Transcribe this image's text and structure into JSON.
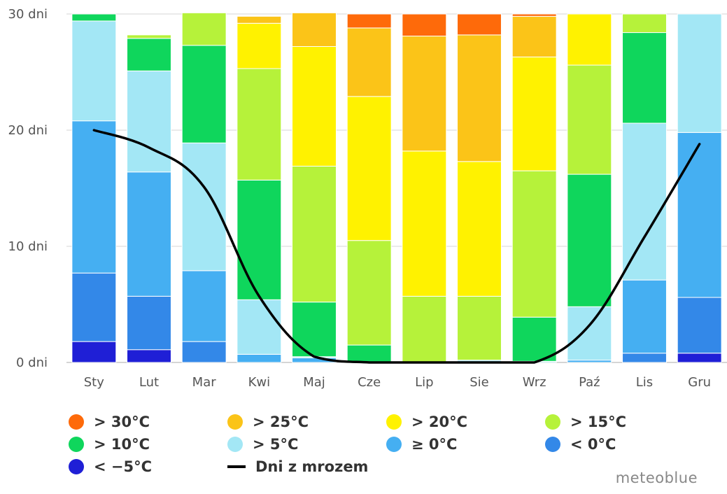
{
  "chart_data": {
    "type": "bar",
    "stacked": true,
    "categories": [
      "Sty",
      "Lut",
      "Mar",
      "Kwi",
      "Maj",
      "Cze",
      "Lip",
      "Sie",
      "Wrz",
      "Paź",
      "Lis",
      "Gru"
    ],
    "y_ticks": [
      "0 dni",
      "10 dni",
      "20 dni",
      "30 dni"
    ],
    "ylim": [
      0,
      30
    ],
    "grid": true,
    "series": [
      {
        "name": "< -5°C",
        "color": "#1f1fd6",
        "values": [
          1.8,
          1.1,
          0,
          0,
          0,
          0,
          0,
          0,
          0,
          0,
          0,
          0.8
        ]
      },
      {
        "name": "< 0°C",
        "color": "#3388e8",
        "values": [
          5.9,
          4.6,
          1.8,
          0,
          0,
          0,
          0,
          0,
          0,
          0,
          0.8,
          4.8
        ]
      },
      {
        "name": "≥ 0°C",
        "color": "#45aff2",
        "values": [
          13.1,
          10.7,
          6.1,
          0.7,
          0.4,
          0,
          0,
          0,
          0,
          0.2,
          6.3,
          14.2
        ]
      },
      {
        "name": "> 5°C",
        "color": "#a3e7f5",
        "values": [
          8.6,
          8.7,
          11.0,
          4.7,
          0.1,
          0,
          0,
          0.2,
          0.1,
          4.6,
          13.5,
          10.2
        ]
      },
      {
        "name": "> 10°C",
        "color": "#0fd65c",
        "values": [
          0.6,
          2.8,
          8.4,
          10.3,
          4.7,
          1.5,
          0,
          0,
          3.8,
          11.4,
          7.8,
          0
        ]
      },
      {
        "name": "> 15°C",
        "color": "#b6f23a",
        "values": [
          0,
          0.3,
          2.8,
          9.6,
          11.7,
          9.0,
          5.7,
          5.5,
          12.6,
          9.4,
          1.6,
          0
        ]
      },
      {
        "name": "> 20°C",
        "color": "#fff200",
        "values": [
          0,
          0,
          0,
          3.9,
          10.3,
          12.4,
          12.5,
          11.6,
          9.8,
          4.4,
          0,
          0
        ]
      },
      {
        "name": "> 25°C",
        "color": "#fbc418",
        "values": [
          0,
          0,
          0,
          0.6,
          2.9,
          5.9,
          9.9,
          10.9,
          3.5,
          0,
          0,
          0
        ]
      },
      {
        "name": "> 30°C",
        "color": "#fe6a0a",
        "values": [
          0,
          0,
          0,
          0,
          0,
          1.2,
          1.9,
          1.8,
          0.2,
          0,
          0,
          0
        ]
      }
    ],
    "line_series": {
      "name": "Dni z mrozem",
      "color": "#000000",
      "values": [
        20.0,
        18.5,
        15.1,
        5.7,
        0.5,
        0,
        0,
        0,
        0,
        3.2,
        10.8,
        18.8
      ]
    },
    "legend": {
      "placement": "bottom",
      "order": [
        "> 30°C",
        "> 25°C",
        "> 20°C",
        "> 15°C",
        "> 10°C",
        "> 5°C",
        "≥ 0°C",
        "< 0°C",
        "< -5°C",
        "Dni z mrozem"
      ]
    }
  },
  "credit": "meteoblue"
}
